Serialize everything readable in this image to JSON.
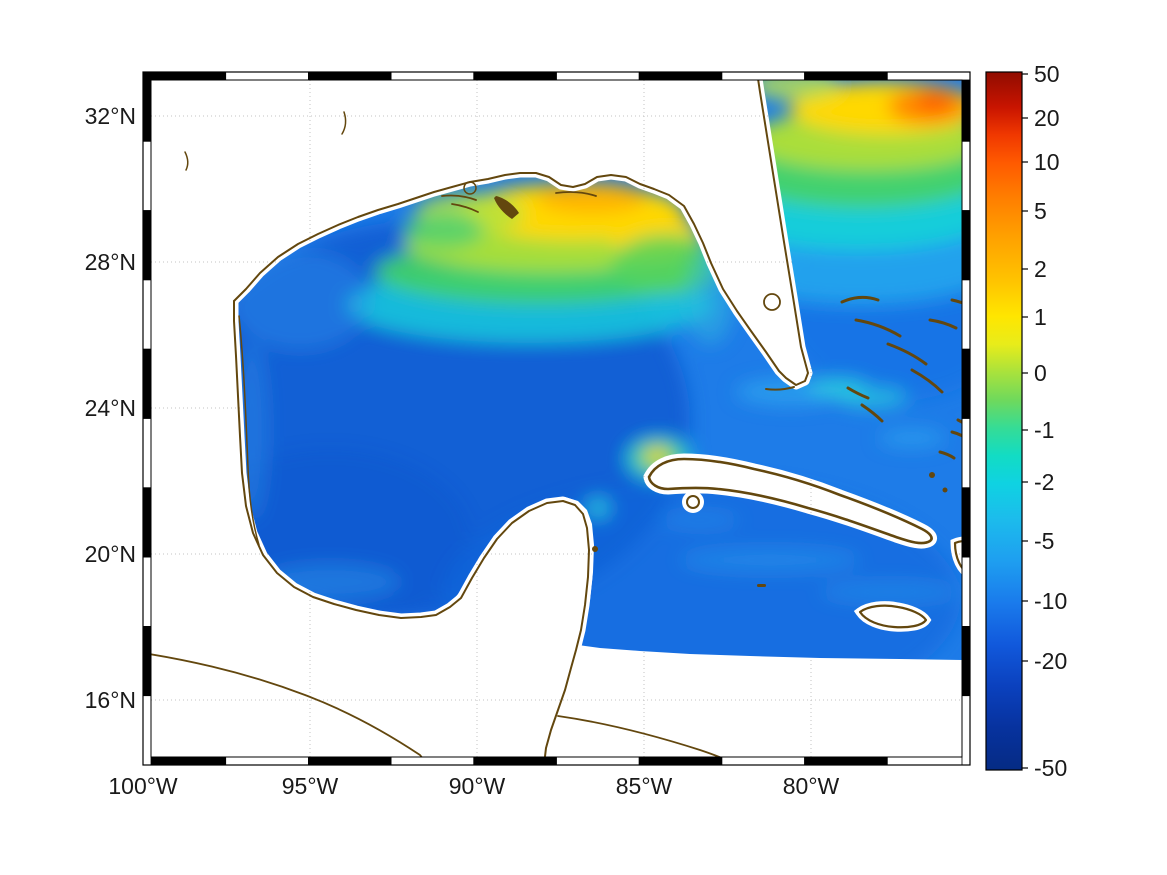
{
  "figure": {
    "kind": "geographic-heatmap",
    "axes": {
      "lat_ticks": [
        "32°N",
        "28°N",
        "24°N",
        "20°N",
        "16°N"
      ],
      "lon_ticks": [
        "100°W",
        "95°W",
        "90°W",
        "85°W",
        "80°W"
      ]
    },
    "colorbar": {
      "tick_labels": [
        "50",
        "20",
        "10",
        "5",
        "2",
        "1",
        "0",
        "-1",
        "-2",
        "-5",
        "-10",
        "-20",
        "-50"
      ]
    }
  },
  "chart_data": {
    "type": "heatmap",
    "title": "",
    "xlabel": "",
    "ylabel": "",
    "x_axis": {
      "ticks": [
        "100°W",
        "95°W",
        "90°W",
        "85°W",
        "80°W"
      ],
      "range_deg_lon": [
        -100,
        -75.2
      ]
    },
    "y_axis": {
      "ticks": [
        "32°N",
        "28°N",
        "24°N",
        "20°N",
        "16°N"
      ],
      "range_deg_lat": [
        14.2,
        33.2
      ]
    },
    "colorbar": {
      "tick_values": [
        50,
        20,
        10,
        5,
        2,
        1,
        0,
        -1,
        -2,
        -5,
        -10,
        -20,
        -50
      ],
      "range": [
        -50,
        50
      ],
      "scale": "symlog",
      "colormap": "jet",
      "top_color": "#8e0b00",
      "bottom_color": "#052b84"
    },
    "map_region": "Gulf of Mexico and western Caribbean / NW Atlantic",
    "grid": "dotted",
    "land_color": "#ffffff",
    "coastline_color": "#63470e",
    "field_samples": [
      {
        "area": "central Gulf of Mexico",
        "approx_value": -10
      },
      {
        "area": "western Gulf near Texas shelf",
        "approx_value": -7
      },
      {
        "area": "northern Gulf coastal shelf, Louisiana to Florida panhandle",
        "approx_value": 1.5
      },
      {
        "area": "Big Bend / Apalachee Bay Florida",
        "approx_value": 1
      },
      {
        "area": "NW Atlantic off Georgia-Florida (top right)",
        "approx_value": 2
      },
      {
        "area": "local maximum near 78W 31.5N (orange spot)",
        "approx_value": 8
      },
      {
        "area": "spot west of Cuba",
        "approx_value": 1
      },
      {
        "area": "Straits of Florida / Bahamas banks",
        "approx_value": -2
      },
      {
        "area": "Caribbean south of Cuba",
        "approx_value": -7
      },
      {
        "area": "Bay of Campeche",
        "approx_value": -6
      },
      {
        "area": "land and no-data margin",
        "approx_value": null
      }
    ]
  }
}
